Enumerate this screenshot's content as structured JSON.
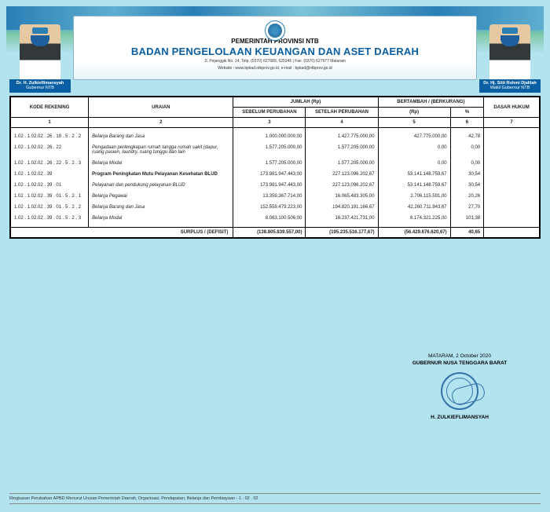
{
  "header": {
    "province_line": "PEMERINTAH PROVINSI NTB",
    "agency": "BADAN PENGELOLAAN KEUANGAN DAN ASET DAERAH",
    "address1": "Jl. Pejanggik No. 14, Telp. (0370) 627689, 625345 | Fax. (0370) 627677 Mataram",
    "address2": "Website : www.bpkad.ntbprov.go.id, e-mail : bpkad@ntbprov.go.id",
    "left_official": {
      "name": "Dr. H. Zulkieflimansyah",
      "role": "Gubernur NTB"
    },
    "right_official": {
      "name": "Dr. Hj. Sitti Rohmi Djalilah",
      "role": "Wakil Gubernur NTB"
    }
  },
  "table": {
    "headers": {
      "kode": "KODE REKENING",
      "uraian": "URAIAN",
      "jumlah": "JUMLAH (Rp)",
      "sebelum": "SEBELUM PERUBAHAN",
      "setelah": "SETELAH PERUBAHAN",
      "bertambah": "BERTAMBAH / (BERKURANG)",
      "rp": "(Rp)",
      "persen": "%",
      "dasar": "DASAR HUKUM",
      "n1": "1",
      "n2": "2",
      "n3": "3",
      "n4": "4",
      "n5": "5",
      "n6": "6",
      "n7": "7"
    },
    "rows": [
      {
        "kode": "1.02 . 1.02.02 . 26 . 19 . 5 . 2 . 2",
        "uraian": "Belanja Barang dan Jasa",
        "italic": true,
        "sebelum": "1.000.000.000,00",
        "setelah": "1.427.775.000,00",
        "rp": "427.775.000,00",
        "persen": "42,78"
      },
      {
        "kode": "1.02 . 1.02.02 . 26 . 22",
        "uraian": "Pengadaan perlengkapan rumah tangga rumah sakit (dapur, ruang pasien, laundry, ruang tunggu dan lain",
        "italic": true,
        "sebelum": "1.577.205.000,00",
        "setelah": "1.577.205.000,00",
        "rp": "0,00",
        "persen": "0,00"
      },
      {
        "kode": "1.02 . 1.02.02 . 26 . 22 . 5 . 2 . 3",
        "uraian": "Belanja Modal",
        "italic": true,
        "sebelum": "1.577.205.000,00",
        "setelah": "1.577.205.000,00",
        "rp": "0,00",
        "persen": "0,00"
      },
      {
        "kode": "1.02 . 1.02.02 . 39",
        "uraian": "Program Peningkatan Mutu Pelayanan Kesehatan BLUD",
        "bold": true,
        "sebelum": "173.981.947.443,00",
        "setelah": "227.123.096.202,67",
        "rp": "53.141.148.759,67",
        "persen": "30,54"
      },
      {
        "kode": "1.02 . 1.02.02 . 39 . 01",
        "uraian": "Pelayanan dan pendukung pelayanan BLUD",
        "italic": true,
        "sebelum": "173.981.947.443,00",
        "setelah": "227.123.096.202,67",
        "rp": "53.141.148.759,67",
        "persen": "30,54"
      },
      {
        "kode": "1.02 . 1.02.02 . 39 . 01 . 5 . 2 . 1",
        "uraian": "Belanja Pegawai",
        "italic": true,
        "sebelum": "13.359.367.714,00",
        "setelah": "16.065.483.305,00",
        "rp": "2.706.115.591,00",
        "persen": "20,26"
      },
      {
        "kode": "1.02 . 1.02.02 . 39 . 01 . 5 . 2 . 2",
        "uraian": "Belanja Barang dan Jasa",
        "italic": true,
        "sebelum": "152.559.479.223,00",
        "setelah": "194.820.191.166,67",
        "rp": "42.260.711.943,67",
        "persen": "27,70"
      },
      {
        "kode": "1.02 . 1.02.02 . 39 . 01 . 5 . 2 . 3",
        "uraian": "Belanja Modal",
        "italic": true,
        "sebelum": "8.063.100.506,00",
        "setelah": "16.237.421.731,00",
        "rp": "8.174.321.225,00",
        "persen": "101,38"
      }
    ],
    "surplus": {
      "label": "SURPLUS / (DEFISIT)",
      "sebelum": "(138.805.839.557,00)",
      "setelah": "(195.235.516.177,67)",
      "rp": "(56.429.676.620,67)",
      "persen": "40,65"
    }
  },
  "signature": {
    "location_date": "MATARAM, 2 October 2020",
    "title": "GUBERNUR NUSA TENGGARA BARAT",
    "name": "H. ZULKIEFLIMANSYAH"
  },
  "footer": "Ringkasan Perubahan APBD Menurut Urusan Pemerintah Daerah, Organisasi, Pendapatan, Belanja dan Pembiayaan - 1 . 02 . 02"
}
